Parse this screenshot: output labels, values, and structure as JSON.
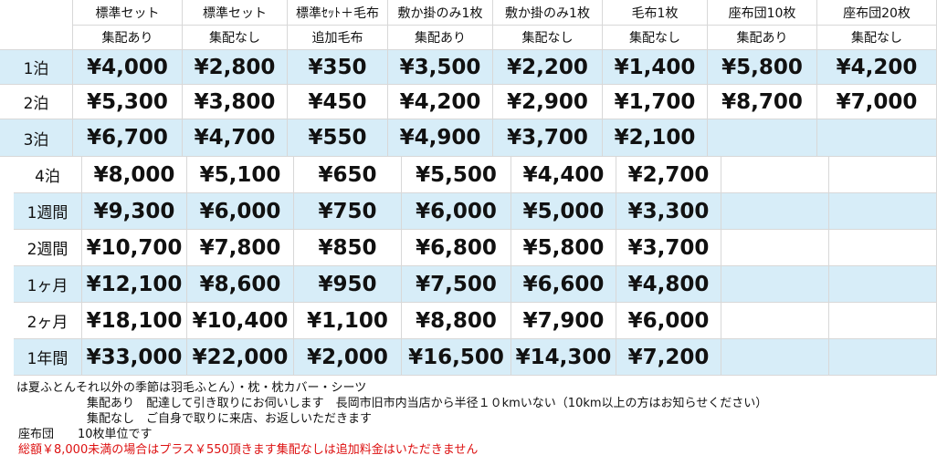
{
  "table": {
    "header1": [
      "標準セット",
      "標準セット",
      "標準ｾｯﾄ＋毛布",
      "敷か掛のみ1枚",
      "敷か掛のみ1枚",
      "毛布1枚",
      "座布団10枚",
      "座布団20枚"
    ],
    "header2": [
      "集配あり",
      "集配なし",
      "追加毛布",
      "集配あり",
      "集配なし",
      "集配なし",
      "集配あり",
      "集配なし"
    ],
    "rows": [
      [
        "1泊",
        "¥4,000",
        "¥2,800",
        "¥350",
        "¥3,500",
        "¥2,200",
        "¥1,400",
        "¥5,800",
        "¥4,200"
      ],
      [
        "2泊",
        "¥5,300",
        "¥3,800",
        "¥450",
        "¥4,200",
        "¥2,900",
        "¥1,700",
        "¥8,700",
        "¥7,000"
      ],
      [
        "3泊",
        "¥6,700",
        "¥4,700",
        "¥550",
        "¥4,900",
        "¥3,700",
        "¥2,100"
      ],
      [
        "4泊",
        "¥8,000",
        "¥5,100",
        "¥650",
        "¥5,500",
        "¥4,400",
        "¥2,700"
      ],
      [
        "1週間",
        "¥9,300",
        "¥6,000",
        "¥750",
        "¥6,000",
        "¥5,000",
        "¥3,300"
      ],
      [
        "2週間",
        "¥10,700",
        "¥7,800",
        "¥850",
        "¥6,800",
        "¥5,800",
        "¥3,700"
      ],
      [
        "1ヶ月",
        "¥12,100",
        "¥8,600",
        "¥950",
        "¥7,500",
        "¥6,600",
        "¥4,800"
      ],
      [
        "2ヶ月",
        "¥18,100",
        "¥10,400",
        "¥1,100",
        "¥8,800",
        "¥7,900",
        "¥6,000"
      ],
      [
        "1年間",
        "¥33,000",
        "¥22,000",
        "¥2,000",
        "¥16,500",
        "¥14,300",
        "¥7,200"
      ]
    ]
  },
  "notes": [
    "は夏ふとんそれ以外の季節は羽毛ふとん）・枕・枕カバー・シーツ",
    "集配あり　配達して引き取りにお伺いします　長岡市旧市内当店から半径１０kmいない（10km以上の方はお知らせください）",
    "集配なし　ご自身で取りに来店、お返しいただきます",
    "座布団　　10枚単位です",
    "総額￥8,000未満の場合はプラス￥550頂きます集配なしは追加料金はいただきません"
  ]
}
